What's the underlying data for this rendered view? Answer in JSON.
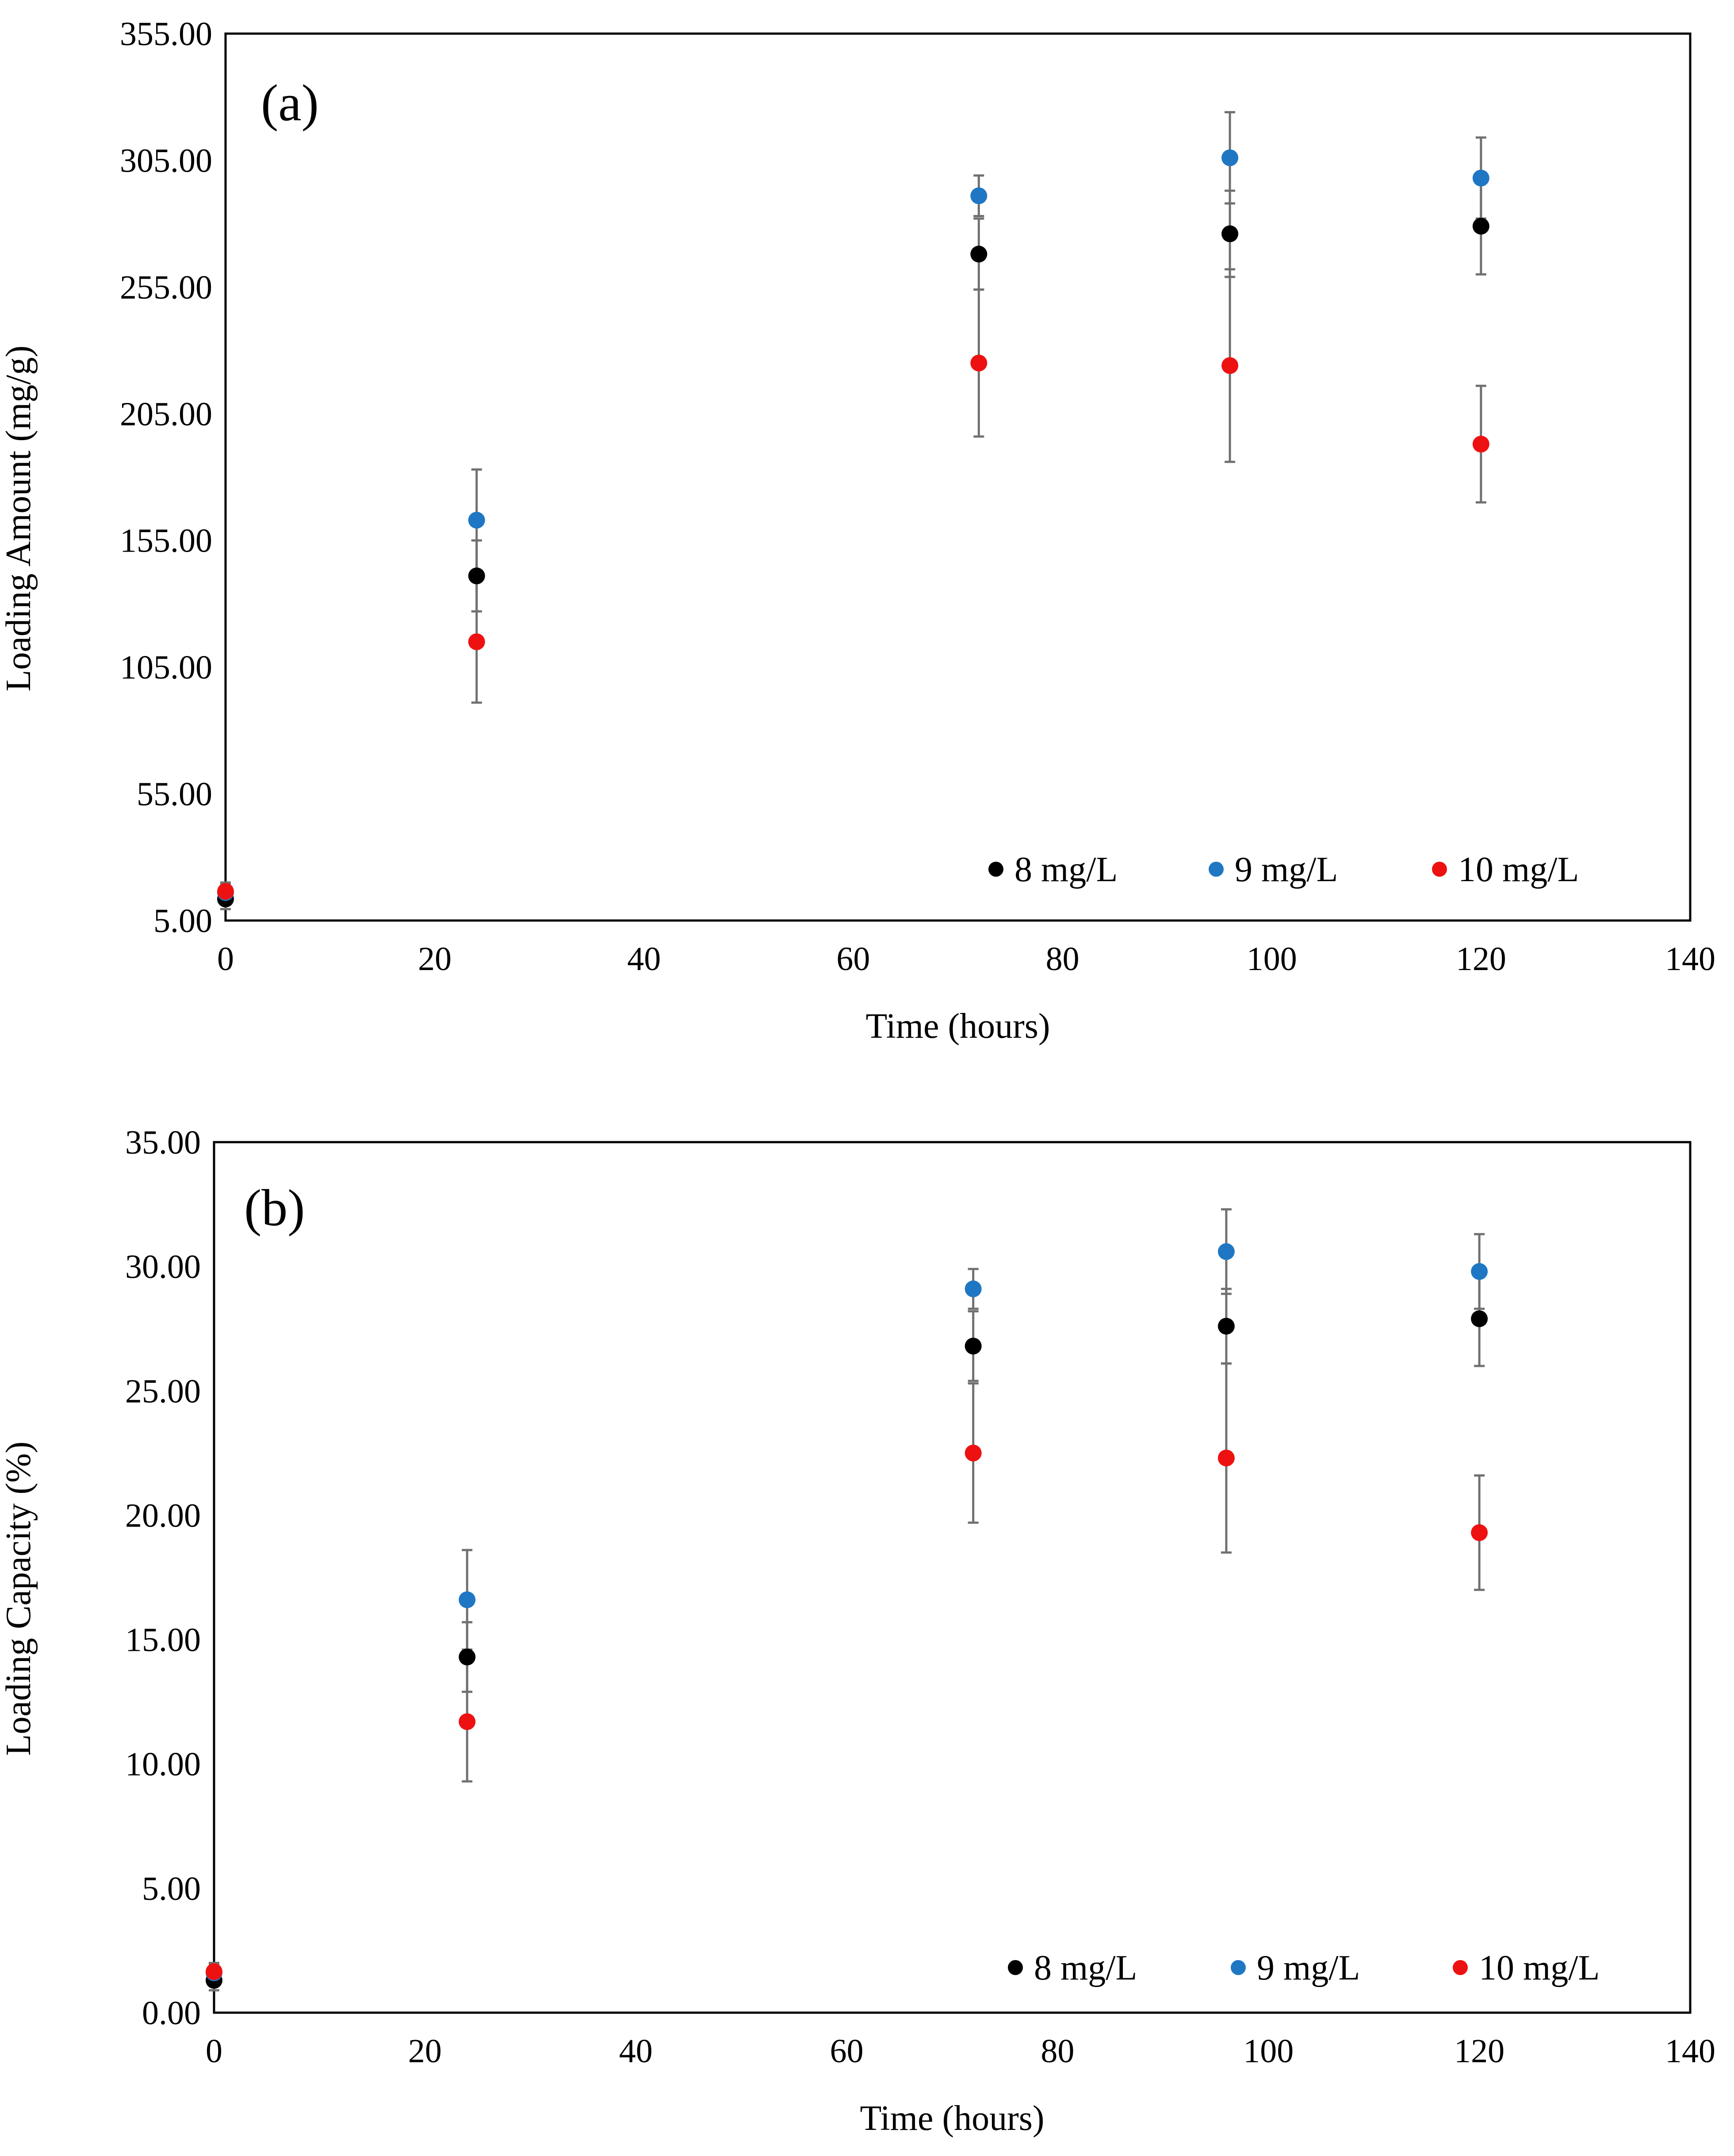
{
  "chart_data": [
    {
      "type": "scatter",
      "panel_label": "(a)",
      "xlabel": "Time (hours)",
      "ylabel": "Loading Amount (mg/g)",
      "xlim": [
        0,
        140
      ],
      "ylim": [
        5,
        355
      ],
      "xticks": [
        0,
        20,
        40,
        60,
        80,
        100,
        120,
        140
      ],
      "yticks": [
        5.0,
        55.0,
        105.0,
        155.0,
        205.0,
        255.0,
        305.0,
        355.0
      ],
      "xtick_labels": [
        "0",
        "20",
        "40",
        "60",
        "80",
        "100",
        "120",
        "140"
      ],
      "ytick_labels": [
        "5.00",
        "55.00",
        "105.00",
        "155.00",
        "205.00",
        "255.00",
        "305.00",
        "355.00"
      ],
      "grid": false,
      "legend_position": "bottom-right",
      "error_bars": true,
      "series": [
        {
          "name": "8 mg/L",
          "color": "#000000",
          "x": [
            0,
            24,
            72,
            96,
            120
          ],
          "y": [
            13.5,
            141,
            268,
            276,
            279
          ],
          "err": [
            4,
            14,
            14,
            17,
            19
          ]
        },
        {
          "name": "9 mg/L",
          "color": "#1f77c4",
          "x": [
            0,
            24,
            72,
            96,
            120
          ],
          "y": [
            16,
            163,
            291,
            306,
            298
          ],
          "err": [
            4,
            20,
            8,
            18,
            16
          ]
        },
        {
          "name": "10 mg/L",
          "color": "#ee1111",
          "x": [
            0,
            24,
            72,
            96,
            120
          ],
          "y": [
            16.5,
            115,
            225,
            224,
            193
          ],
          "err": [
            3,
            24,
            29,
            38,
            23
          ]
        }
      ]
    },
    {
      "type": "scatter",
      "panel_label": "(b)",
      "xlabel": "Time (hours)",
      "ylabel": "Loading Capacity (%)",
      "xlim": [
        0,
        140
      ],
      "ylim": [
        0,
        35
      ],
      "xticks": [
        0,
        20,
        40,
        60,
        80,
        100,
        120,
        140
      ],
      "yticks": [
        0,
        5,
        10,
        15,
        20,
        25,
        30,
        35
      ],
      "xtick_labels": [
        "0",
        "20",
        "40",
        "60",
        "80",
        "100",
        "120",
        "140"
      ],
      "ytick_labels": [
        "0.00",
        "5.00",
        "10.00",
        "15.00",
        "20.00",
        "25.00",
        "30.00",
        "35.00"
      ],
      "grid": false,
      "legend_position": "bottom-right",
      "error_bars": true,
      "series": [
        {
          "name": "8 mg/L",
          "color": "#000000",
          "x": [
            0,
            24,
            72,
            96,
            120
          ],
          "y": [
            1.3,
            14.3,
            26.8,
            27.6,
            27.9
          ],
          "err": [
            0.4,
            1.4,
            1.4,
            1.5,
            1.9
          ]
        },
        {
          "name": "9 mg/L",
          "color": "#1f77c4",
          "x": [
            0,
            24,
            72,
            96,
            120
          ],
          "y": [
            1.6,
            16.6,
            29.1,
            30.6,
            29.8
          ],
          "err": [
            0.4,
            2.0,
            0.8,
            1.7,
            1.5
          ]
        },
        {
          "name": "10 mg/L",
          "color": "#ee1111",
          "x": [
            0,
            24,
            72,
            96,
            120
          ],
          "y": [
            1.65,
            11.7,
            22.5,
            22.3,
            19.3
          ],
          "err": [
            0.3,
            2.4,
            2.8,
            3.8,
            2.3
          ]
        }
      ]
    }
  ]
}
